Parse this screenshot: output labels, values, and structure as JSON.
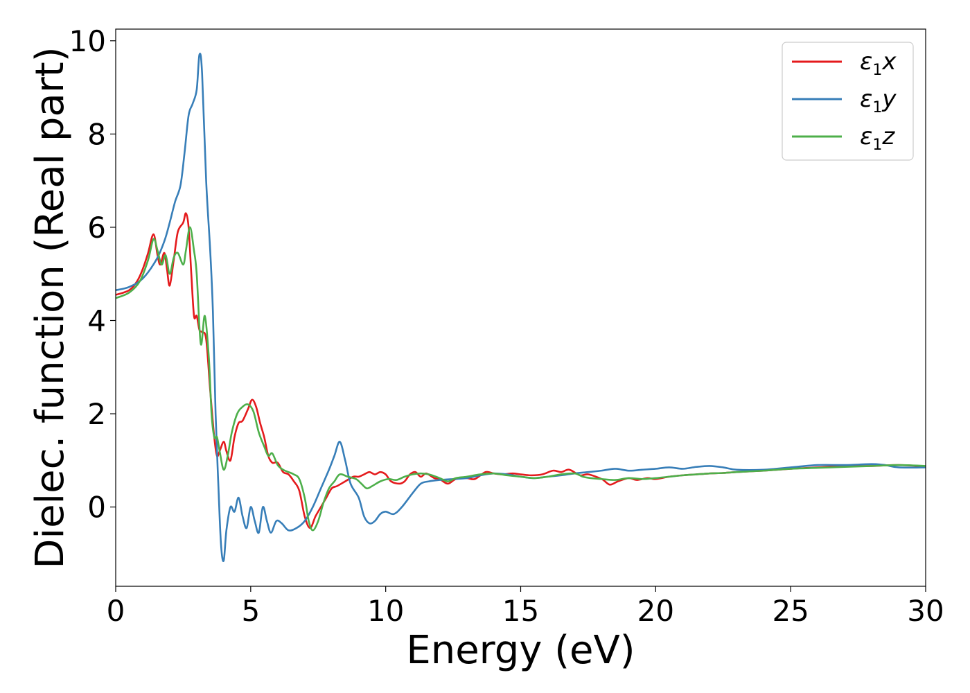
{
  "chart_data": {
    "type": "line",
    "xlabel": "Energy (eV)",
    "ylabel": "Dielec. function (Real part)",
    "xlim": [
      0,
      30
    ],
    "ylim": [
      -1.7,
      10.25
    ],
    "x_ticks": [
      0,
      5,
      10,
      15,
      20,
      25,
      30
    ],
    "y_ticks": [
      0,
      2,
      4,
      6,
      8,
      10
    ],
    "grid": false,
    "legend_position": "top-right",
    "series": [
      {
        "name": "ε1x",
        "symbol": "ε",
        "subscript": "1",
        "axis": "x",
        "color": "#e41a1c",
        "points": [
          [
            0,
            4.55
          ],
          [
            0.5,
            4.65
          ],
          [
            0.8,
            4.85
          ],
          [
            1.0,
            5.1
          ],
          [
            1.2,
            5.45
          ],
          [
            1.4,
            5.85
          ],
          [
            1.55,
            5.4
          ],
          [
            1.65,
            5.2
          ],
          [
            1.8,
            5.45
          ],
          [
            1.9,
            5.1
          ],
          [
            2.0,
            4.75
          ],
          [
            2.15,
            5.3
          ],
          [
            2.3,
            5.9
          ],
          [
            2.5,
            6.1
          ],
          [
            2.6,
            6.3
          ],
          [
            2.7,
            6.0
          ],
          [
            2.8,
            5.0
          ],
          [
            2.9,
            4.1
          ],
          [
            3.0,
            4.1
          ],
          [
            3.1,
            3.8
          ],
          [
            3.2,
            3.75
          ],
          [
            3.35,
            3.6
          ],
          [
            3.5,
            2.5
          ],
          [
            3.65,
            1.5
          ],
          [
            3.75,
            1.1
          ],
          [
            3.85,
            1.2
          ],
          [
            4.0,
            1.4
          ],
          [
            4.1,
            1.2
          ],
          [
            4.25,
            1.0
          ],
          [
            4.4,
            1.5
          ],
          [
            4.55,
            1.8
          ],
          [
            4.7,
            1.85
          ],
          [
            4.9,
            2.1
          ],
          [
            5.05,
            2.3
          ],
          [
            5.2,
            2.15
          ],
          [
            5.35,
            1.8
          ],
          [
            5.5,
            1.5
          ],
          [
            5.65,
            1.1
          ],
          [
            5.8,
            0.95
          ],
          [
            6.0,
            0.95
          ],
          [
            6.2,
            0.75
          ],
          [
            6.4,
            0.7
          ],
          [
            6.6,
            0.55
          ],
          [
            6.8,
            0.35
          ],
          [
            7.0,
            -0.2
          ],
          [
            7.2,
            -0.45
          ],
          [
            7.4,
            -0.2
          ],
          [
            7.6,
            0.0
          ],
          [
            7.8,
            0.2
          ],
          [
            8.0,
            0.4
          ],
          [
            8.2,
            0.45
          ],
          [
            8.5,
            0.55
          ],
          [
            8.8,
            0.65
          ],
          [
            9.0,
            0.65
          ],
          [
            9.2,
            0.7
          ],
          [
            9.4,
            0.75
          ],
          [
            9.6,
            0.7
          ],
          [
            9.8,
            0.75
          ],
          [
            10.0,
            0.7
          ],
          [
            10.2,
            0.55
          ],
          [
            10.5,
            0.5
          ],
          [
            10.7,
            0.55
          ],
          [
            10.9,
            0.7
          ],
          [
            11.1,
            0.75
          ],
          [
            11.3,
            0.65
          ],
          [
            11.5,
            0.72
          ],
          [
            11.8,
            0.62
          ],
          [
            12.0,
            0.6
          ],
          [
            12.3,
            0.5
          ],
          [
            12.6,
            0.6
          ],
          [
            13.0,
            0.62
          ],
          [
            13.3,
            0.6
          ],
          [
            13.7,
            0.75
          ],
          [
            14.0,
            0.72
          ],
          [
            14.3,
            0.7
          ],
          [
            14.7,
            0.72
          ],
          [
            15.0,
            0.7
          ],
          [
            15.4,
            0.68
          ],
          [
            15.8,
            0.7
          ],
          [
            16.2,
            0.78
          ],
          [
            16.5,
            0.75
          ],
          [
            16.8,
            0.8
          ],
          [
            17.2,
            0.68
          ],
          [
            17.5,
            0.7
          ],
          [
            18.0,
            0.6
          ],
          [
            18.3,
            0.48
          ],
          [
            18.6,
            0.55
          ],
          [
            19.0,
            0.62
          ],
          [
            19.3,
            0.58
          ],
          [
            19.7,
            0.62
          ],
          [
            20.0,
            0.6
          ],
          [
            20.5,
            0.65
          ],
          [
            21.0,
            0.68
          ],
          [
            21.5,
            0.7
          ],
          [
            22.0,
            0.72
          ],
          [
            22.5,
            0.73
          ],
          [
            23.0,
            0.75
          ],
          [
            24.0,
            0.78
          ],
          [
            25.0,
            0.82
          ],
          [
            26.0,
            0.85
          ],
          [
            27.0,
            0.88
          ],
          [
            28.0,
            0.88
          ],
          [
            29.0,
            0.9
          ],
          [
            30.0,
            0.87
          ]
        ]
      },
      {
        "name": "ε1y",
        "symbol": "ε",
        "subscript": "1",
        "axis": "y",
        "color": "#377eb8",
        "points": [
          [
            0,
            4.65
          ],
          [
            0.5,
            4.72
          ],
          [
            1.0,
            4.9
          ],
          [
            1.5,
            5.3
          ],
          [
            1.8,
            5.7
          ],
          [
            2.0,
            6.1
          ],
          [
            2.2,
            6.55
          ],
          [
            2.4,
            6.9
          ],
          [
            2.55,
            7.6
          ],
          [
            2.7,
            8.4
          ],
          [
            2.85,
            8.65
          ],
          [
            3.0,
            8.95
          ],
          [
            3.1,
            9.7
          ],
          [
            3.2,
            9.3
          ],
          [
            3.35,
            7.0
          ],
          [
            3.5,
            5.5
          ],
          [
            3.6,
            4.2
          ],
          [
            3.7,
            2.0
          ],
          [
            3.8,
            0.5
          ],
          [
            3.9,
            -0.8
          ],
          [
            4.0,
            -1.15
          ],
          [
            4.1,
            -0.5
          ],
          [
            4.25,
            0.0
          ],
          [
            4.4,
            -0.1
          ],
          [
            4.55,
            0.2
          ],
          [
            4.7,
            -0.2
          ],
          [
            4.85,
            -0.45
          ],
          [
            5.0,
            0.0
          ],
          [
            5.15,
            -0.3
          ],
          [
            5.3,
            -0.55
          ],
          [
            5.45,
            0.0
          ],
          [
            5.6,
            -0.3
          ],
          [
            5.75,
            -0.55
          ],
          [
            5.95,
            -0.3
          ],
          [
            6.15,
            -0.35
          ],
          [
            6.4,
            -0.5
          ],
          [
            6.7,
            -0.45
          ],
          [
            7.0,
            -0.3
          ],
          [
            7.3,
            0.0
          ],
          [
            7.6,
            0.4
          ],
          [
            7.9,
            0.8
          ],
          [
            8.1,
            1.1
          ],
          [
            8.3,
            1.4
          ],
          [
            8.5,
            1.0
          ],
          [
            8.7,
            0.5
          ],
          [
            9.0,
            0.2
          ],
          [
            9.2,
            -0.2
          ],
          [
            9.4,
            -0.35
          ],
          [
            9.6,
            -0.3
          ],
          [
            9.8,
            -0.15
          ],
          [
            10.0,
            -0.1
          ],
          [
            10.3,
            -0.15
          ],
          [
            10.6,
            0.0
          ],
          [
            11.0,
            0.3
          ],
          [
            11.3,
            0.5
          ],
          [
            11.6,
            0.55
          ],
          [
            12.0,
            0.58
          ],
          [
            12.5,
            0.6
          ],
          [
            13.0,
            0.62
          ],
          [
            13.5,
            0.68
          ],
          [
            14.0,
            0.72
          ],
          [
            14.5,
            0.7
          ],
          [
            15.0,
            0.65
          ],
          [
            15.5,
            0.62
          ],
          [
            16.0,
            0.65
          ],
          [
            16.5,
            0.68
          ],
          [
            17.0,
            0.72
          ],
          [
            17.5,
            0.75
          ],
          [
            18.0,
            0.78
          ],
          [
            18.5,
            0.82
          ],
          [
            19.0,
            0.78
          ],
          [
            19.5,
            0.8
          ],
          [
            20.0,
            0.82
          ],
          [
            20.5,
            0.85
          ],
          [
            21.0,
            0.82
          ],
          [
            21.5,
            0.86
          ],
          [
            22.0,
            0.88
          ],
          [
            22.5,
            0.85
          ],
          [
            23.0,
            0.8
          ],
          [
            24.0,
            0.8
          ],
          [
            25.0,
            0.85
          ],
          [
            26.0,
            0.9
          ],
          [
            27.0,
            0.9
          ],
          [
            28.0,
            0.92
          ],
          [
            28.5,
            0.9
          ],
          [
            29.0,
            0.85
          ],
          [
            30.0,
            0.85
          ]
        ]
      },
      {
        "name": "ε1z",
        "symbol": "ε",
        "subscript": "1",
        "axis": "z",
        "color": "#4daf4a",
        "points": [
          [
            0,
            4.48
          ],
          [
            0.5,
            4.6
          ],
          [
            0.9,
            4.85
          ],
          [
            1.2,
            5.3
          ],
          [
            1.4,
            5.75
          ],
          [
            1.55,
            5.5
          ],
          [
            1.7,
            5.2
          ],
          [
            1.85,
            5.4
          ],
          [
            2.0,
            5.0
          ],
          [
            2.15,
            5.35
          ],
          [
            2.3,
            5.45
          ],
          [
            2.5,
            5.2
          ],
          [
            2.6,
            5.5
          ],
          [
            2.75,
            6.0
          ],
          [
            2.9,
            5.5
          ],
          [
            3.0,
            5.0
          ],
          [
            3.15,
            3.5
          ],
          [
            3.3,
            4.1
          ],
          [
            3.45,
            3.2
          ],
          [
            3.55,
            2.0
          ],
          [
            3.65,
            1.5
          ],
          [
            3.75,
            1.5
          ],
          [
            3.85,
            1.2
          ],
          [
            4.0,
            0.8
          ],
          [
            4.15,
            1.1
          ],
          [
            4.3,
            1.6
          ],
          [
            4.5,
            2.0
          ],
          [
            4.7,
            2.15
          ],
          [
            4.9,
            2.2
          ],
          [
            5.1,
            2.05
          ],
          [
            5.3,
            1.6
          ],
          [
            5.5,
            1.3
          ],
          [
            5.65,
            1.1
          ],
          [
            5.8,
            1.15
          ],
          [
            6.0,
            0.9
          ],
          [
            6.2,
            0.8
          ],
          [
            6.4,
            0.75
          ],
          [
            6.6,
            0.7
          ],
          [
            6.8,
            0.6
          ],
          [
            7.0,
            0.2
          ],
          [
            7.15,
            -0.3
          ],
          [
            7.3,
            -0.5
          ],
          [
            7.5,
            -0.3
          ],
          [
            7.7,
            0.1
          ],
          [
            7.9,
            0.4
          ],
          [
            8.1,
            0.55
          ],
          [
            8.3,
            0.7
          ],
          [
            8.6,
            0.65
          ],
          [
            8.9,
            0.6
          ],
          [
            9.1,
            0.5
          ],
          [
            9.3,
            0.4
          ],
          [
            9.5,
            0.45
          ],
          [
            9.8,
            0.55
          ],
          [
            10.1,
            0.6
          ],
          [
            10.4,
            0.58
          ],
          [
            10.7,
            0.65
          ],
          [
            11.0,
            0.7
          ],
          [
            11.3,
            0.72
          ],
          [
            11.6,
            0.7
          ],
          [
            12.0,
            0.62
          ],
          [
            12.3,
            0.55
          ],
          [
            12.6,
            0.62
          ],
          [
            13.0,
            0.65
          ],
          [
            13.5,
            0.7
          ],
          [
            14.0,
            0.72
          ],
          [
            14.5,
            0.68
          ],
          [
            15.0,
            0.65
          ],
          [
            15.5,
            0.62
          ],
          [
            16.0,
            0.65
          ],
          [
            16.5,
            0.7
          ],
          [
            17.0,
            0.72
          ],
          [
            17.3,
            0.65
          ],
          [
            17.6,
            0.62
          ],
          [
            18.0,
            0.6
          ],
          [
            18.5,
            0.58
          ],
          [
            19.0,
            0.62
          ],
          [
            19.5,
            0.6
          ],
          [
            20.0,
            0.62
          ],
          [
            20.5,
            0.65
          ],
          [
            21.0,
            0.68
          ],
          [
            21.5,
            0.7
          ],
          [
            22.0,
            0.72
          ],
          [
            22.5,
            0.73
          ],
          [
            23.0,
            0.75
          ],
          [
            24.0,
            0.78
          ],
          [
            25.0,
            0.82
          ],
          [
            26.0,
            0.84
          ],
          [
            27.0,
            0.86
          ],
          [
            28.0,
            0.88
          ],
          [
            29.0,
            0.9
          ],
          [
            30.0,
            0.88
          ]
        ]
      }
    ]
  }
}
